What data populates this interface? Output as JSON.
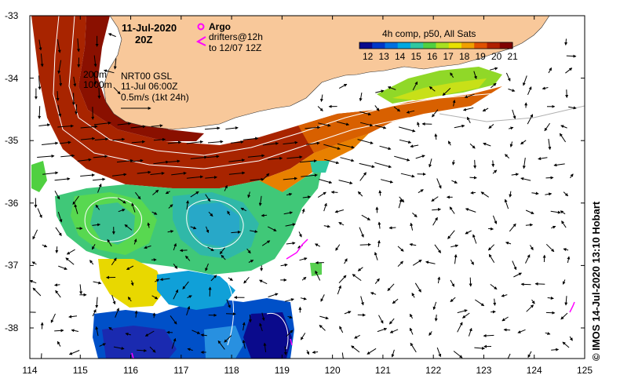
{
  "title": {
    "date": "11-Jul-2020",
    "time": "20Z"
  },
  "legend_argo": {
    "label": "Argo",
    "drifters_line1": "drifters@12h",
    "drifters_line2": "to 12/07 12Z",
    "argo_color": "#ff00ff",
    "drifter_color": "#ff00ff"
  },
  "contours": {
    "line1": "200m",
    "line2": "1000m"
  },
  "current_info": {
    "source": "NRT00 GSL",
    "time": "11-Jul 06:00Z",
    "scale": "0.5m/s (1kt 24h)"
  },
  "colorbar": {
    "title": "4h comp, p50, All Sats",
    "labels": [
      "12",
      "13",
      "14",
      "15",
      "16",
      "17",
      "18",
      "19",
      "20",
      "21"
    ],
    "colors": [
      "#0a0a8c",
      "#0038c8",
      "#0070e0",
      "#00a8e0",
      "#30c8a0",
      "#50d040",
      "#a8e020",
      "#e8e000",
      "#f0a000",
      "#e05000",
      "#b02000",
      "#800000"
    ]
  },
  "axes": {
    "x_ticks": [
      "114",
      "115",
      "116",
      "117",
      "118",
      "119",
      "120",
      "121",
      "122",
      "123",
      "124",
      "125"
    ],
    "y_ticks": [
      "-33",
      "-34",
      "-35",
      "-36",
      "-37",
      "-38"
    ]
  },
  "credit": "© IMOS 14-Jul-2020 13:10 Hobart",
  "colors": {
    "land": "#f8c89a",
    "ocean_bg": "#ffffff"
  }
}
